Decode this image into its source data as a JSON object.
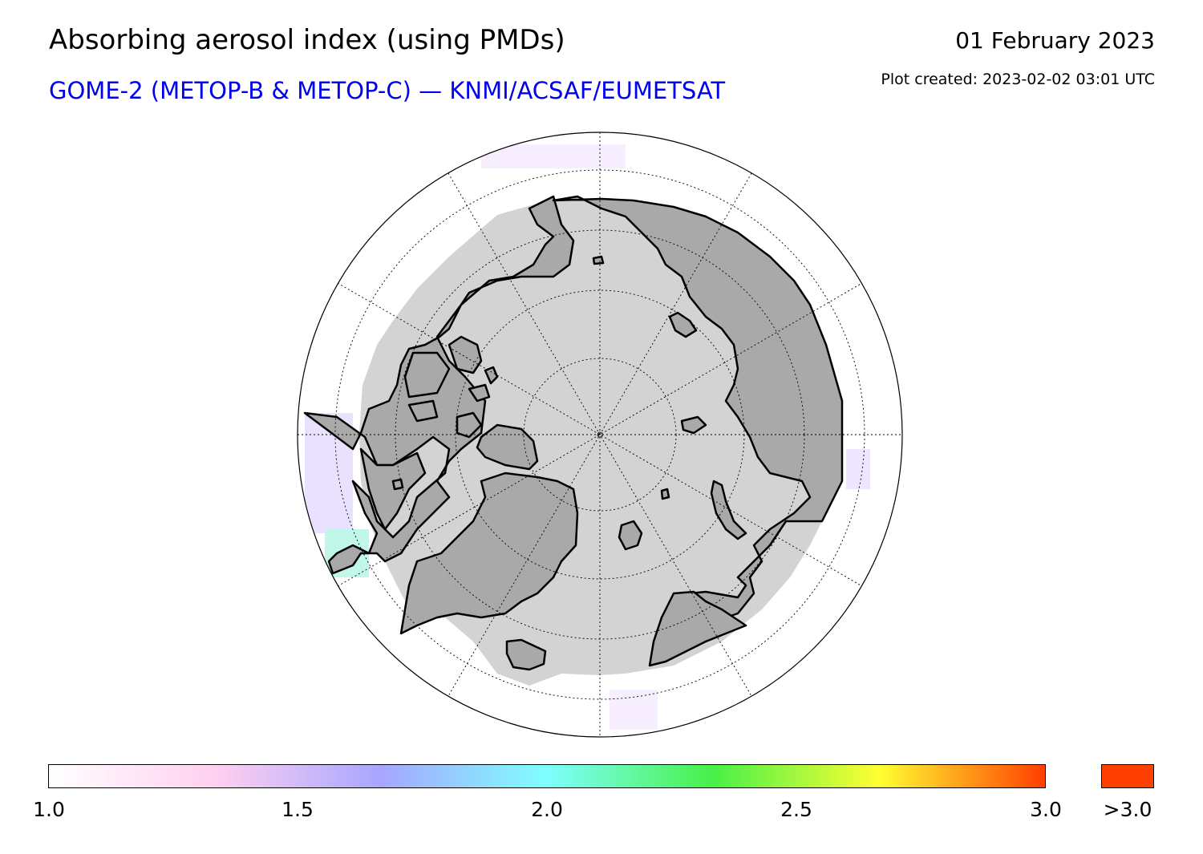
{
  "header": {
    "title": "Absorbing aerosol index (using PMDs)",
    "subtitle": "GOME-2 (METOP-B & METOP-C) — KNMI/ACSAF/EUMETSAT",
    "date": "01 February 2023",
    "created": "Plot created: 2023-02-02 03:01 UTC"
  },
  "map": {
    "projection": "north-polar-stereographic",
    "meridian_step_deg": 30,
    "colors": {
      "land": "#a9a9a9",
      "polar_night_ocean": "#d3d3d3",
      "data_ocean": "#ffffff",
      "coastline": "#000000",
      "graticule": "#000000"
    }
  },
  "colorbar": {
    "stops": [
      "#ffffff",
      "#ffd0f0",
      "#a6a6ff",
      "#7fffff",
      "#47f047",
      "#ffff33",
      "#ff3f00"
    ],
    "range": [
      1.0,
      3.0
    ],
    "ticks": [
      "1.0",
      "1.5",
      "2.0",
      "2.5",
      "3.0"
    ],
    "over_label": ">3.0",
    "over_color": "#ff3f00"
  }
}
